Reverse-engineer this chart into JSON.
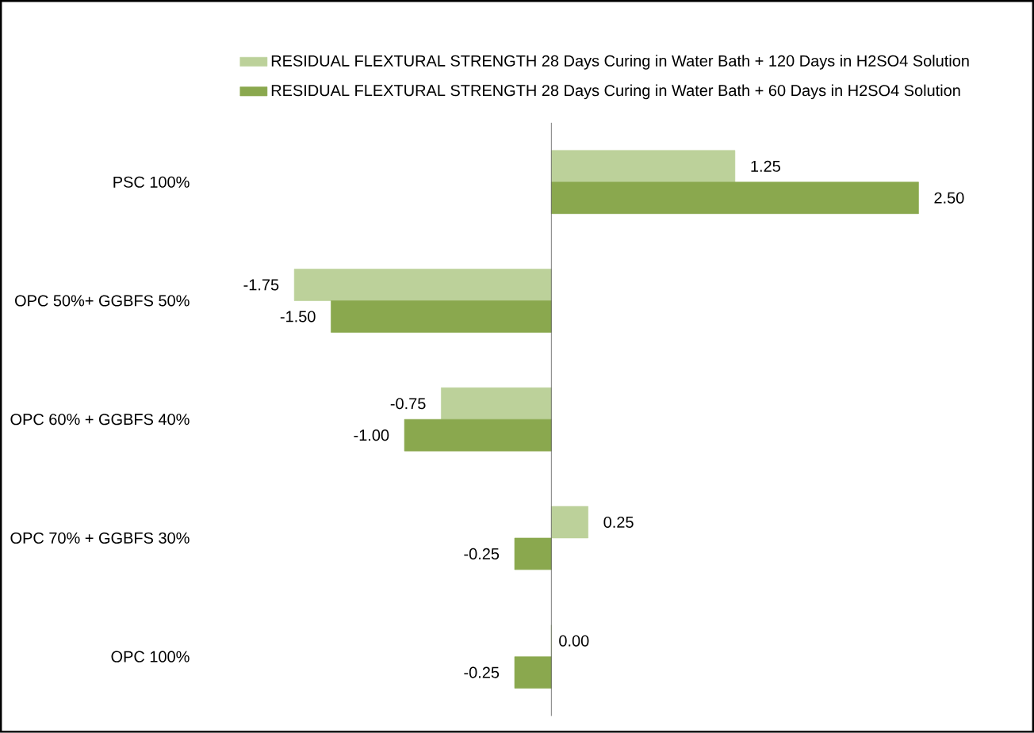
{
  "chart_data": {
    "type": "bar",
    "orientation": "horizontal",
    "legend": "top",
    "categories": [
      "PSC 100%",
      "OPC 50%+ GGBFS 50%",
      "OPC 60% + GGBFS 40%",
      "OPC 70% + GGBFS 30%",
      "OPC 100%"
    ],
    "series": [
      {
        "name": "RESIDUAL FLEXTURAL STRENGTH 28 Days Curing in Water Bath + 120 Days in H2SO4 Solution",
        "color": "#bcd19a",
        "values": [
          1.25,
          -1.75,
          -0.75,
          0.25,
          0.0
        ],
        "value_labels": [
          "1.25",
          "-1.75",
          "-0.75",
          "0.25",
          "0.00"
        ]
      },
      {
        "name": "RESIDUAL FLEXTURAL STRENGTH 28 Days Curing in Water Bath + 60 Days in H2SO4 Solution",
        "color": "#8aa84e",
        "values": [
          2.5,
          -1.5,
          -1.0,
          -0.25,
          -0.25
        ],
        "value_labels": [
          "2.50",
          "-1.50",
          "-1.00",
          "-0.25",
          "-0.25"
        ]
      }
    ]
  }
}
